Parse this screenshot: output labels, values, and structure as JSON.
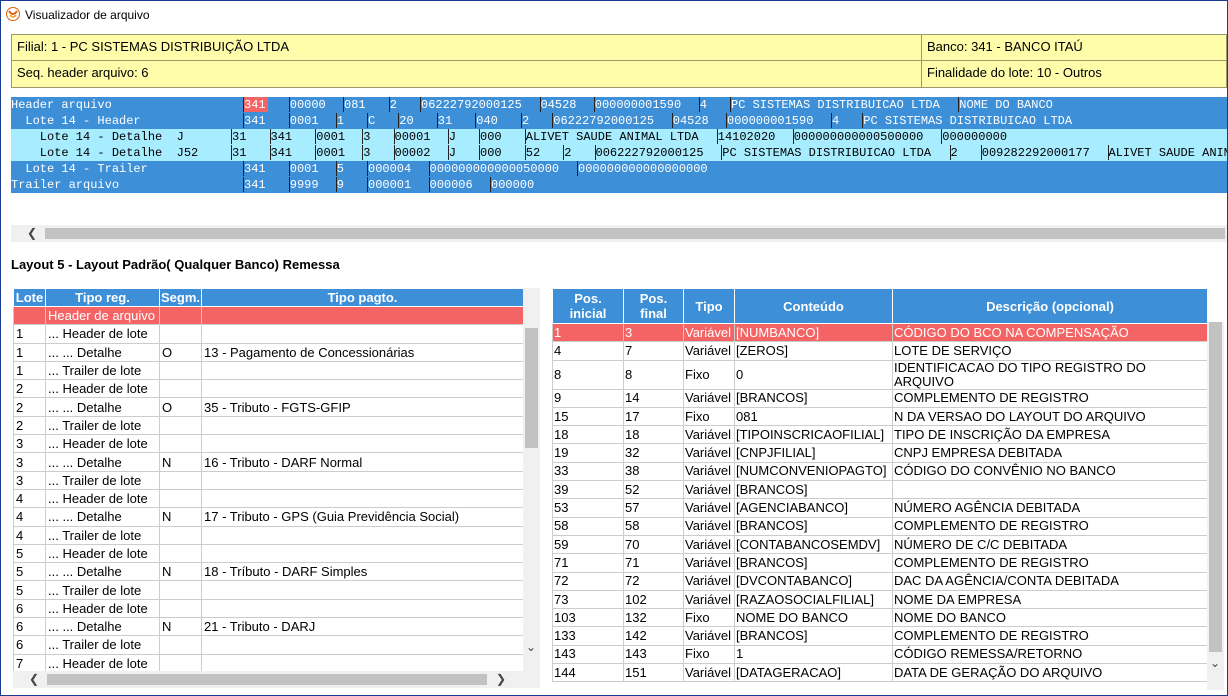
{
  "window": {
    "title": "Visualizador de arquivo"
  },
  "info": {
    "filial": "Filial: 1 - PC SISTEMAS DISTRIBUIÇÃO LTDA",
    "banco": "Banco: 341 - BANCO ITAÚ",
    "seq_header": "Seq. header arquivo: 6",
    "finalidade": "Finalidade do lote: 10 - Outros"
  },
  "colors": {
    "accent": "#3d8fd8",
    "selected": "#f56464",
    "record_dark": "#3d8fd8",
    "record_light": "#a8ecff",
    "info_bg": "#fffdaa"
  },
  "records": [
    {
      "label": "Header arquivo",
      "shade": "dark",
      "fields": [
        "341",
        "00000",
        "081",
        "2",
        "06222792000125",
        "04528",
        "000000001590",
        "4",
        "PC SISTEMAS DISTRIBUICAO LTDA",
        "NOME DO BANCO"
      ]
    },
    {
      "label": "  Lote 14 - Header",
      "shade": "dark",
      "fields": [
        "341",
        "0001",
        "1",
        "C",
        "20",
        "31",
        "040",
        "2",
        "06222792000125",
        "04528",
        "000000001590",
        "4",
        "PC SISTEMAS DISTRIBUICAO LTDA"
      ]
    },
    {
      "label": "    Lote 14 - Detalhe  J",
      "shade": "light",
      "fields": [
        "31",
        "341",
        "0001",
        "3",
        "00001",
        "J",
        "000",
        "ALIVET SAUDE ANIMAL LTDA",
        "14102020",
        "000000000000500000",
        "000000000"
      ]
    },
    {
      "label": "    Lote 14 - Detalhe  J52",
      "shade": "light",
      "fields": [
        "31",
        "341",
        "0001",
        "3",
        "00002",
        "J",
        "000",
        "52",
        "2",
        "006222792000125",
        "PC SISTEMAS DISTRIBUICAO LTDA",
        "2",
        "009282292000177",
        "ALIVET SAUDE ANIMAL LTDA"
      ]
    },
    {
      "label": "  Lote 14 - Trailer",
      "shade": "dark",
      "fields": [
        "341",
        "0001",
        "5",
        "000004",
        "000000000000050000",
        "000000000000000000"
      ]
    },
    {
      "label": "Trailer arquivo",
      "shade": "dark",
      "fields": [
        "341",
        "9999",
        "9",
        "000001",
        "000006",
        "000000"
      ]
    }
  ],
  "layout_title": "Layout 5 - Layout Padrão( Qualquer Banco) Remessa",
  "left_table": {
    "headers": [
      "Lote",
      "Tipo reg.",
      "Segm.",
      "Tipo pagto."
    ],
    "rows": [
      [
        "",
        "Header de arquivo",
        "",
        ""
      ],
      [
        "1",
        "... Header de lote",
        "",
        ""
      ],
      [
        "1",
        "... ... Detalhe",
        "O",
        "13 - Pagamento de Concessionárias"
      ],
      [
        "1",
        "... Trailer de lote",
        "",
        ""
      ],
      [
        "2",
        "... Header de lote",
        "",
        ""
      ],
      [
        "2",
        "... ... Detalhe",
        "O",
        "35 - Tributo - FGTS-GFIP"
      ],
      [
        "2",
        "... Trailer de lote",
        "",
        ""
      ],
      [
        "3",
        "... Header de lote",
        "",
        ""
      ],
      [
        "3",
        "... ... Detalhe",
        "N",
        "16 - Tributo - DARF Normal"
      ],
      [
        "3",
        "... Trailer de lote",
        "",
        ""
      ],
      [
        "4",
        "... Header de lote",
        "",
        ""
      ],
      [
        "4",
        "... ... Detalhe",
        "N",
        "17 - Tributo - GPS (Guia Previdência Social)"
      ],
      [
        "4",
        "... Trailer de lote",
        "",
        ""
      ],
      [
        "5",
        "... Header de lote",
        "",
        ""
      ],
      [
        "5",
        "... ... Detalhe",
        "N",
        "18 - Tríbuto - DARF Simples"
      ],
      [
        "5",
        "... Trailer de lote",
        "",
        ""
      ],
      [
        "6",
        "... Header de lote",
        "",
        ""
      ],
      [
        "6",
        "... ... Detalhe",
        "N",
        "21 - Tributo - DARJ"
      ],
      [
        "6",
        "... Trailer de lote",
        "",
        ""
      ],
      [
        "7",
        "... Header de lote",
        "",
        ""
      ]
    ]
  },
  "right_table": {
    "headers": [
      "Pos. inicial",
      "Pos. final",
      "Tipo",
      "Conteúdo",
      "Descrição (opcional)"
    ],
    "rows": [
      [
        "1",
        "3",
        "Variável",
        "[NUMBANCO]",
        "CÓDIGO DO BCO NA COMPENSAÇÃO"
      ],
      [
        "4",
        "7",
        "Variável",
        "[ZEROS]",
        "LOTE DE SERVIÇO"
      ],
      [
        "8",
        "8",
        "Fixo",
        "0",
        "IDENTIFICACAO DO TIPO REGISTRO DO ARQUIVO"
      ],
      [
        "9",
        "14",
        "Variável",
        "[BRANCOS]",
        "COMPLEMENTO DE REGISTRO"
      ],
      [
        "15",
        "17",
        "Fixo",
        "081",
        "N DA VERSAO DO LAYOUT DO ARQUIVO"
      ],
      [
        "18",
        "18",
        "Variável",
        "[TIPOINSCRICAOFILIAL]",
        "TIPO DE INSCRIÇÃO DA EMPRESA"
      ],
      [
        "19",
        "32",
        "Variável",
        "[CNPJFILIAL]",
        "CNPJ EMPRESA DEBITADA"
      ],
      [
        "33",
        "38",
        "Variável",
        "[NUMCONVENIOPAGTO]",
        "CÓDIGO DO CONVÊNIO NO BANCO"
      ],
      [
        "39",
        "52",
        "Variável",
        "[BRANCOS]",
        ""
      ],
      [
        "53",
        "57",
        "Variável",
        "[AGENCIABANCO]",
        "NÚMERO AGÊNCIA DEBITADA"
      ],
      [
        "58",
        "58",
        "Variável",
        "[BRANCOS]",
        "COMPLEMENTO DE REGISTRO"
      ],
      [
        "59",
        "70",
        "Variável",
        "[CONTABANCOSEMDV]",
        "NÚMERO DE C/C DEBITADA"
      ],
      [
        "71",
        "71",
        "Variável",
        "[BRANCOS]",
        "COMPLEMENTO DE REGISTRO"
      ],
      [
        "72",
        "72",
        "Variável",
        "[DVCONTABANCO]",
        "DAC DA AGÊNCIA/CONTA DEBITADA"
      ],
      [
        "73",
        "102",
        "Variável",
        "[RAZAOSOCIALFILIAL]",
        "NOME DA EMPRESA"
      ],
      [
        "103",
        "132",
        "Fixo",
        "NOME DO BANCO",
        "NOME DO BANCO"
      ],
      [
        "133",
        "142",
        "Variável",
        "[BRANCOS]",
        "COMPLEMENTO DE REGISTRO"
      ],
      [
        "143",
        "143",
        "Fixo",
        "1",
        "CÓDIGO REMESSA/RETORNO"
      ],
      [
        "144",
        "151",
        "Variável",
        "[DATAGERACAO]",
        "DATA DE GERAÇÃO DO ARQUIVO"
      ]
    ]
  }
}
